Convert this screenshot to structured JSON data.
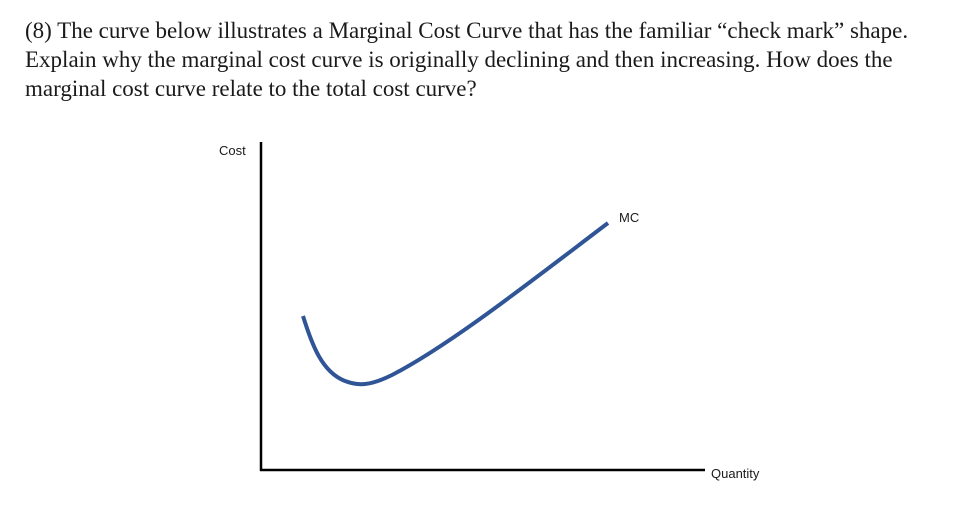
{
  "question": {
    "lines": [
      "(8) The curve below illustrates a Marginal Cost Curve that has the familiar “check mark” shape.",
      "Explain why the marginal cost curve is originally declining and then increasing.  How does the",
      "marginal cost curve relate to the total cost curve?"
    ]
  },
  "chart_data": {
    "type": "line",
    "title": "",
    "xlabel": "Quantity",
    "ylabel": "Cost",
    "series": [
      {
        "name": "MC",
        "color": "#2f5597",
        "shape": "check-mark (falls, reaches a minimum, then rises)"
      }
    ],
    "axis_color": "#000000",
    "grid": false,
    "ticks": false
  }
}
